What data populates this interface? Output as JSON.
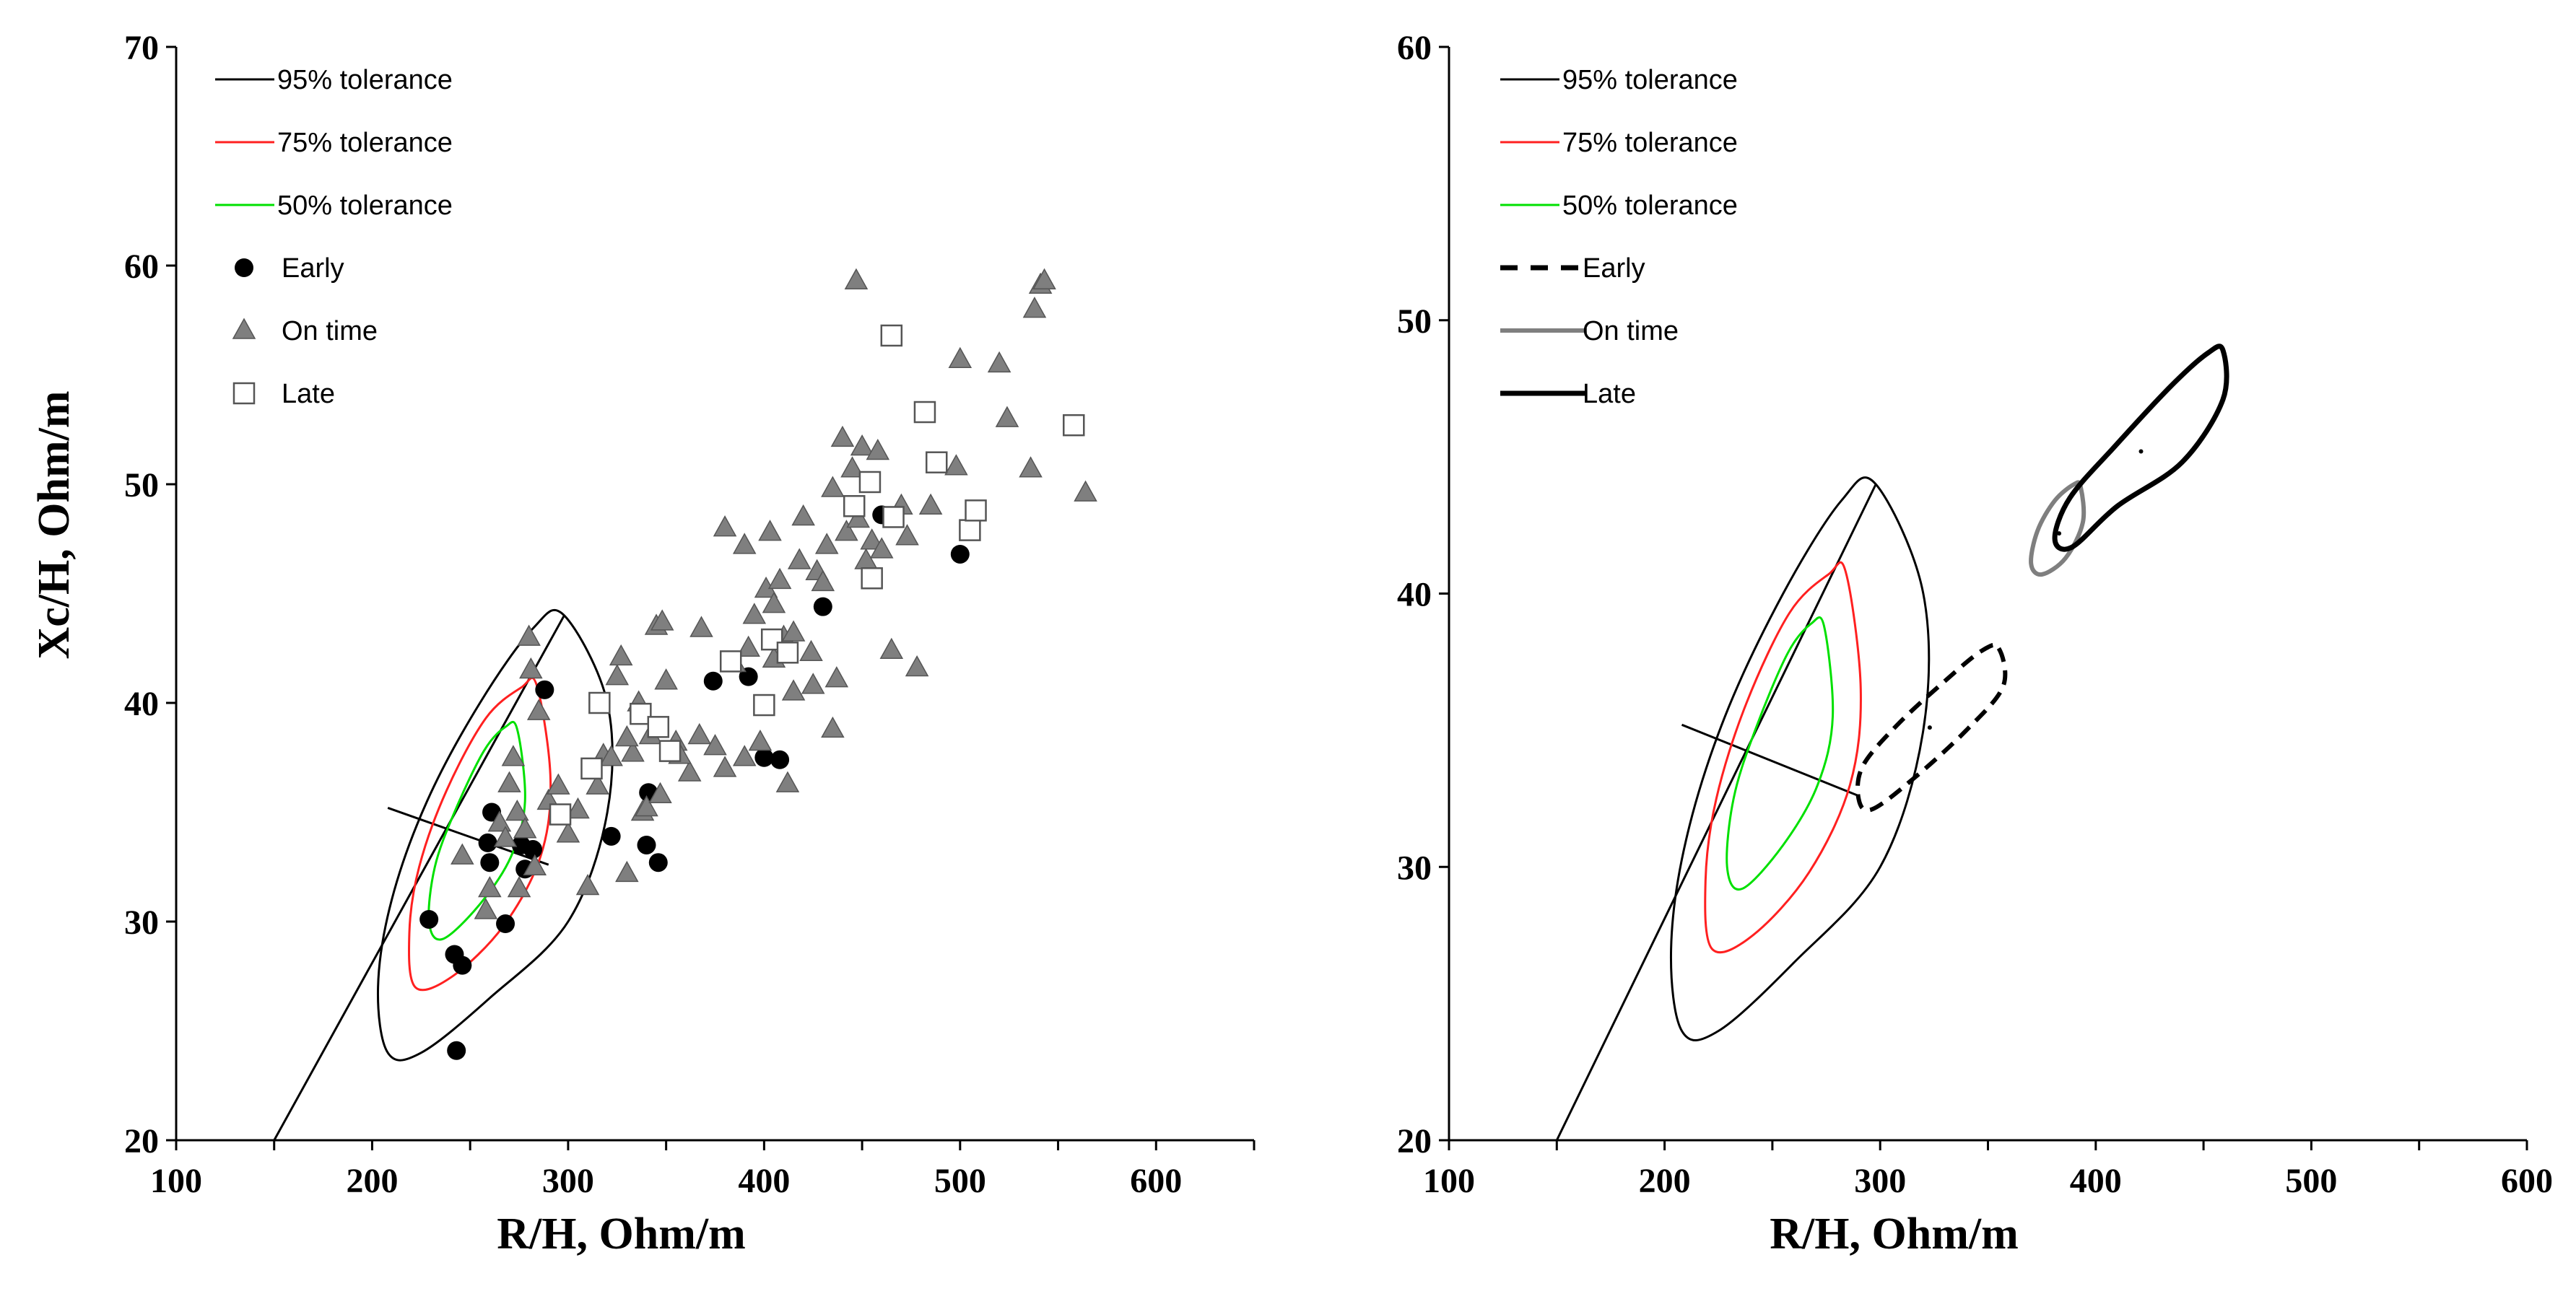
{
  "chart_data": [
    {
      "type": "scatter",
      "panel": "left",
      "xlabel": "R/H, Ohm/m",
      "ylabel": "Xc/H, Ohm/m",
      "xlim": [
        100,
        650
      ],
      "ylim": [
        20,
        70
      ],
      "xticks": [
        100,
        200,
        300,
        400,
        500,
        600
      ],
      "yticks": [
        20,
        30,
        40,
        50,
        60,
        70
      ],
      "ytick_labels": [
        "20",
        "30",
        "40",
        "50",
        "60",
        "70"
      ],
      "legend_position": "top-left",
      "legend": [
        {
          "label": "95% tolerance",
          "kind": "line",
          "color": "#000000"
        },
        {
          "label": "75% tolerance",
          "kind": "line",
          "color": "#ff2020"
        },
        {
          "label": "50% tolerance",
          "kind": "line",
          "color": "#00e000"
        },
        {
          "label": "Early",
          "kind": "circle",
          "color": "#000000"
        },
        {
          "label": "On time",
          "kind": "triangle",
          "color": "#7f7f7f"
        },
        {
          "label": "Late",
          "kind": "square",
          "color": "#ffffff"
        }
      ],
      "tolerance_ellipses": [
        {
          "name": "95% tolerance",
          "color": "#000000",
          "points": [
            [
              298,
              44
            ],
            [
              320,
              40
            ],
            [
              320,
              35
            ],
            [
              300,
              30
            ],
            [
              260,
              26.5
            ],
            [
              225,
              24
            ],
            [
              208,
              24
            ],
            [
              203,
              27
            ],
            [
              210,
              31
            ],
            [
              228,
              35.5
            ],
            [
              255,
              40
            ],
            [
              282,
              43.4
            ]
          ]
        },
        {
          "name": "75% tolerance",
          "color": "#ff2020",
          "points": [
            [
              284,
              40.8
            ],
            [
              291,
              36.5
            ],
            [
              286,
              33
            ],
            [
              267,
              29.8
            ],
            [
              241,
              27.5
            ],
            [
              222,
              27
            ],
            [
              219,
              29.5
            ],
            [
              224,
              32.5
            ],
            [
              238,
              36
            ],
            [
              258,
              39.3
            ],
            [
              276,
              40.7
            ]
          ]
        },
        {
          "name": "50% tolerance",
          "color": "#00e000",
          "points": [
            [
              274,
              38.8
            ],
            [
              278,
              35.5
            ],
            [
              271,
              33
            ],
            [
              255,
              30.8
            ],
            [
              236,
              29.2
            ],
            [
              229,
              30
            ],
            [
              232,
              32.5
            ],
            [
              242,
              35
            ],
            [
              257,
              37.8
            ],
            [
              268,
              38.9
            ]
          ]
        }
      ],
      "regression_line": {
        "x1": 150,
        "y1": 20,
        "x2": 298,
        "y2": 44
      },
      "minor_axis_line": {
        "x1": 208,
        "y1": 35.2,
        "x2": 290,
        "y2": 32.6
      },
      "series": [
        {
          "name": "Early",
          "marker": "circle",
          "points": [
            [
              243,
              24.1
            ],
            [
              229,
              30.1
            ],
            [
              242,
              28.5
            ],
            [
              246,
              28.0
            ],
            [
              259,
              33.6
            ],
            [
              260,
              32.7
            ],
            [
              261,
              35.0
            ],
            [
              268,
              29.9
            ],
            [
              276,
              33.5
            ],
            [
              278,
              32.4
            ],
            [
              282,
              33.3
            ],
            [
              288,
              40.6
            ],
            [
              340,
              33.5
            ],
            [
              341,
              35.9
            ],
            [
              346,
              32.7
            ],
            [
              322,
              33.9
            ],
            [
              374,
              41.0
            ],
            [
              392,
              41.2
            ],
            [
              400,
              37.5
            ],
            [
              408,
              37.4
            ],
            [
              430,
              44.4
            ],
            [
              460,
              48.6
            ],
            [
              500,
              46.8
            ]
          ]
        },
        {
          "name": "On time",
          "marker": "triangle",
          "points": [
            [
              246,
              33.0
            ],
            [
              258,
              30.5
            ],
            [
              260,
              31.5
            ],
            [
              265,
              34.5
            ],
            [
              268,
              33.8
            ],
            [
              270,
              36.3
            ],
            [
              272,
              37.5
            ],
            [
              274,
              35.0
            ],
            [
              275,
              31.5
            ],
            [
              278,
              34.2
            ],
            [
              280,
              43.0
            ],
            [
              281,
              41.5
            ],
            [
              283,
              32.5
            ],
            [
              285,
              39.6
            ],
            [
              290,
              35.5
            ],
            [
              295,
              36.2
            ],
            [
              300,
              34.0
            ],
            [
              305,
              35.1
            ],
            [
              310,
              31.6
            ],
            [
              315,
              36.2
            ],
            [
              318,
              37.6
            ],
            [
              322,
              37.5
            ],
            [
              325,
              41.2
            ],
            [
              327,
              42.1
            ],
            [
              330,
              32.2
            ],
            [
              333,
              37.7
            ],
            [
              336,
              40.0
            ],
            [
              338,
              35.0
            ],
            [
              340,
              35.2
            ],
            [
              342,
              38.5
            ],
            [
              345,
              43.5
            ],
            [
              347,
              35.8
            ],
            [
              350,
              41.0
            ],
            [
              355,
              38.2
            ],
            [
              362,
              36.8
            ],
            [
              368,
              43.4
            ],
            [
              375,
              38.0
            ],
            [
              380,
              37.0
            ],
            [
              385,
              41.8
            ],
            [
              390,
              37.5
            ],
            [
              392,
              42.5
            ],
            [
              395,
              44.0
            ],
            [
              398,
              38.2
            ],
            [
              401,
              45.2
            ],
            [
              403,
              47.8
            ],
            [
              405,
              44.5
            ],
            [
              408,
              45.6
            ],
            [
              410,
              43.0
            ],
            [
              412,
              36.3
            ],
            [
              415,
              40.5
            ],
            [
              418,
              46.5
            ],
            [
              420,
              48.5
            ],
            [
              424,
              42.3
            ],
            [
              427,
              46.0
            ],
            [
              430,
              45.5
            ],
            [
              432,
              47.2
            ],
            [
              435,
              49.8
            ],
            [
              437,
              41.1
            ],
            [
              440,
              52.1
            ],
            [
              442,
              47.8
            ],
            [
              445,
              50.7
            ],
            [
              447,
              59.3
            ],
            [
              448,
              48.4
            ],
            [
              450,
              51.7
            ],
            [
              452,
              46.5
            ],
            [
              455,
              47.4
            ],
            [
              458,
              51.5
            ],
            [
              460,
              47.0
            ],
            [
              465,
              42.4
            ],
            [
              470,
              49.0
            ],
            [
              473,
              47.6
            ],
            [
              478,
              41.6
            ],
            [
              485,
              49.0
            ],
            [
              498,
              50.8
            ],
            [
              500,
              55.7
            ],
            [
              520,
              55.5
            ],
            [
              524,
              53.0
            ],
            [
              536,
              50.7
            ],
            [
              538,
              58.0
            ],
            [
              541,
              59.1
            ],
            [
              543,
              59.3
            ],
            [
              564,
              49.6
            ],
            [
              435,
              38.8
            ],
            [
              425,
              40.8
            ],
            [
              415,
              43.2
            ],
            [
              405,
              42.0
            ],
            [
              390,
              47.2
            ],
            [
              380,
              48.0
            ],
            [
              367,
              38.5
            ],
            [
              357,
              37.6
            ],
            [
              348,
              43.7
            ],
            [
              330,
              38.4
            ]
          ]
        },
        {
          "name": "Late",
          "marker": "square",
          "points": [
            [
              296,
              34.9
            ],
            [
              312,
              37.0
            ],
            [
              316,
              40.0
            ],
            [
              337,
              39.5
            ],
            [
              346,
              38.9
            ],
            [
              352,
              37.8
            ],
            [
              383,
              41.9
            ],
            [
              400,
              39.9
            ],
            [
              404,
              42.9
            ],
            [
              412,
              42.3
            ],
            [
              446,
              49.0
            ],
            [
              454,
              50.1
            ],
            [
              455,
              45.7
            ],
            [
              465,
              56.8
            ],
            [
              466,
              48.5
            ],
            [
              482,
              53.3
            ],
            [
              488,
              51.0
            ],
            [
              505,
              47.9
            ],
            [
              508,
              48.8
            ],
            [
              558,
              52.7
            ]
          ]
        }
      ]
    },
    {
      "type": "line",
      "panel": "right",
      "xlabel": "R/H, Ohm/m",
      "ylabel": "",
      "xlim": [
        100,
        600
      ],
      "ylim": [
        20,
        60
      ],
      "xticks": [
        100,
        200,
        300,
        400,
        500,
        600
      ],
      "yticks": [
        20,
        30,
        40,
        50,
        60
      ],
      "ytick_labels": [
        "20",
        "30",
        "40",
        "50",
        "60"
      ],
      "legend_position": "top-left",
      "legend": [
        {
          "label": "95% tolerance",
          "kind": "line",
          "color": "#000000"
        },
        {
          "label": "75% tolerance",
          "kind": "line",
          "color": "#ff2020"
        },
        {
          "label": "50% tolerance",
          "kind": "line",
          "color": "#00e000"
        },
        {
          "label": "Early",
          "kind": "dashed",
          "color": "#000000"
        },
        {
          "label": "On time",
          "kind": "grayline",
          "color": "#7f7f7f"
        },
        {
          "label": "Late",
          "kind": "thickline",
          "color": "#000000"
        }
      ],
      "tolerance_ellipses": [
        {
          "name": "95% tolerance",
          "color": "#000000",
          "points": [
            [
              298,
              44
            ],
            [
              320,
              40
            ],
            [
              320,
              35
            ],
            [
              300,
              30
            ],
            [
              260,
              26.5
            ],
            [
              225,
              24
            ],
            [
              208,
              24
            ],
            [
              203,
              27
            ],
            [
              210,
              31
            ],
            [
              228,
              35.5
            ],
            [
              255,
              40
            ],
            [
              282,
              43.4
            ]
          ]
        },
        {
          "name": "75% tolerance",
          "color": "#ff2020",
          "points": [
            [
              284,
              40.8
            ],
            [
              291,
              36.5
            ],
            [
              286,
              33
            ],
            [
              267,
              29.8
            ],
            [
              241,
              27.5
            ],
            [
              222,
              27
            ],
            [
              219,
              29.5
            ],
            [
              224,
              32.5
            ],
            [
              238,
              36
            ],
            [
              258,
              39.3
            ],
            [
              276,
              40.7
            ]
          ]
        },
        {
          "name": "50% tolerance",
          "color": "#00e000",
          "points": [
            [
              274,
              38.8
            ],
            [
              278,
              35.5
            ],
            [
              271,
              33
            ],
            [
              255,
              30.8
            ],
            [
              236,
              29.2
            ],
            [
              229,
              30
            ],
            [
              232,
              32.5
            ],
            [
              242,
              35
            ],
            [
              257,
              37.8
            ],
            [
              268,
              38.9
            ]
          ]
        }
      ],
      "regression_line": {
        "x1": 150,
        "y1": 20,
        "x2": 298,
        "y2": 44
      },
      "minor_axis_line": {
        "x1": 208,
        "y1": 35.2,
        "x2": 290,
        "y2": 32.6
      },
      "group_ellipses": [
        {
          "name": "Early",
          "style": "dashed",
          "center": [
            323,
            35.1
          ],
          "points": [
            [
              355,
              38
            ],
            [
              357,
              36.6
            ],
            [
              340,
              35
            ],
            [
              315,
              33.2
            ],
            [
              296,
              32.1
            ],
            [
              290,
              32.5
            ],
            [
              292,
              33.7
            ],
            [
              308,
              35.2
            ],
            [
              330,
              36.8
            ],
            [
              347,
              37.9
            ]
          ]
        },
        {
          "name": "On time",
          "style": "gray",
          "center": [
            383,
            42.2
          ],
          "points": [
            [
              393,
              43.9
            ],
            [
              394,
              42.6
            ],
            [
              386,
              41.3
            ],
            [
              375,
              40.7
            ],
            [
              370,
              41.1
            ],
            [
              373,
              42.3
            ],
            [
              381,
              43.4
            ],
            [
              390,
              44.0
            ]
          ]
        },
        {
          "name": "Late",
          "style": "thick",
          "center": [
            421,
            45.2
          ],
          "points": [
            [
              459,
              48.9
            ],
            [
              459,
              47.1
            ],
            [
              440,
              44.8
            ],
            [
              410,
              43.2
            ],
            [
              389,
              41.7
            ],
            [
              381,
              42.0
            ],
            [
              388,
              43.5
            ],
            [
              409,
              45.4
            ],
            [
              435,
              47.6
            ],
            [
              452,
              48.8
            ]
          ]
        }
      ]
    }
  ]
}
